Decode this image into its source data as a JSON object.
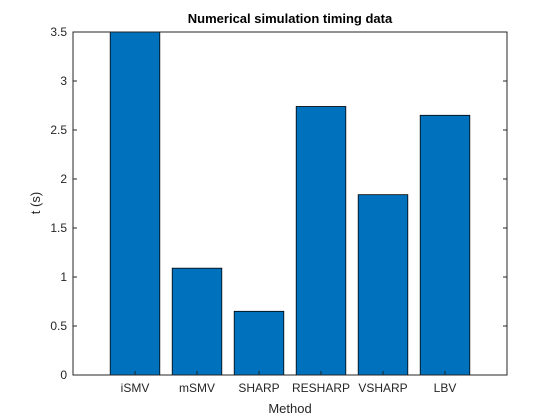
{
  "chart_data": {
    "type": "bar",
    "title": "Numerical simulation timing data",
    "xlabel": "Method",
    "ylabel": "t (s)",
    "categories": [
      "iSMV",
      "mSMV",
      "SHARP",
      "RESHARP",
      "VSHARP",
      "LBV"
    ],
    "values": [
      3.5,
      1.09,
      0.65,
      2.74,
      1.84,
      2.65
    ],
    "ylim": [
      0,
      3.5
    ],
    "yticks": [
      "0",
      "0.5",
      "1",
      "1.5",
      "2",
      "2.5",
      "3",
      "3.5"
    ],
    "bar_color": "#0072BD",
    "grid": false,
    "legend": "none"
  }
}
